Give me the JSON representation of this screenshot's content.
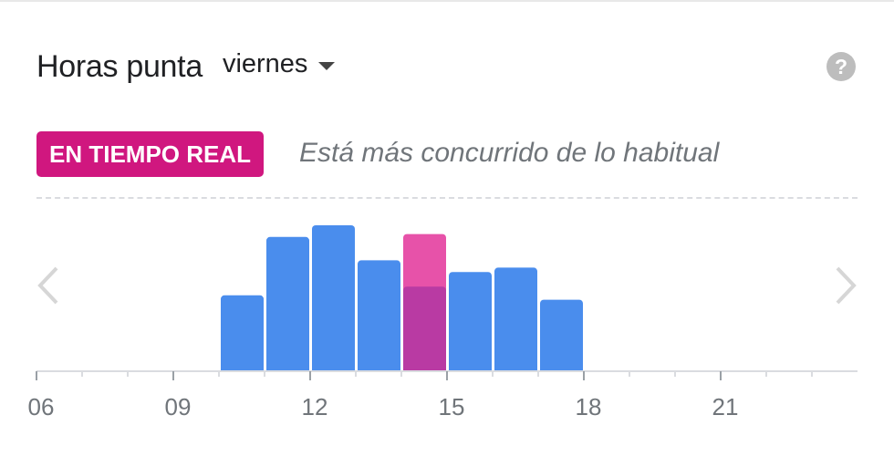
{
  "header": {
    "title": "Horas punta",
    "day_selector": {
      "selected": "viernes",
      "icon": "caret-down-icon"
    },
    "help_icon": "help-circle-icon"
  },
  "live": {
    "badge": "EN TIEMPO REAL",
    "status": "Está más concurrido de lo habitual"
  },
  "navigation": {
    "prev_icon": "chevron-left-icon",
    "next_icon": "chevron-right-icon"
  },
  "colors": {
    "bar_usual": "#4a8ded",
    "bar_live": "#e752a9",
    "bar_current_usual": "#b93aa3",
    "badge": "#d0177f"
  },
  "chart_data": {
    "type": "bar",
    "unit": "relative busyness (0-100)",
    "x_tick_labels": [
      "06",
      "09",
      "12",
      "15",
      "18",
      "21"
    ],
    "hours": [
      6,
      7,
      8,
      9,
      10,
      11,
      12,
      13,
      14,
      15,
      16,
      17,
      18,
      19,
      20,
      21,
      22,
      23
    ],
    "usual": [
      0,
      0,
      0,
      0,
      52,
      92,
      100,
      76,
      58,
      68,
      71,
      49,
      0,
      0,
      0,
      0,
      0,
      0
    ],
    "current_hour": 14,
    "live_value": 94
  }
}
